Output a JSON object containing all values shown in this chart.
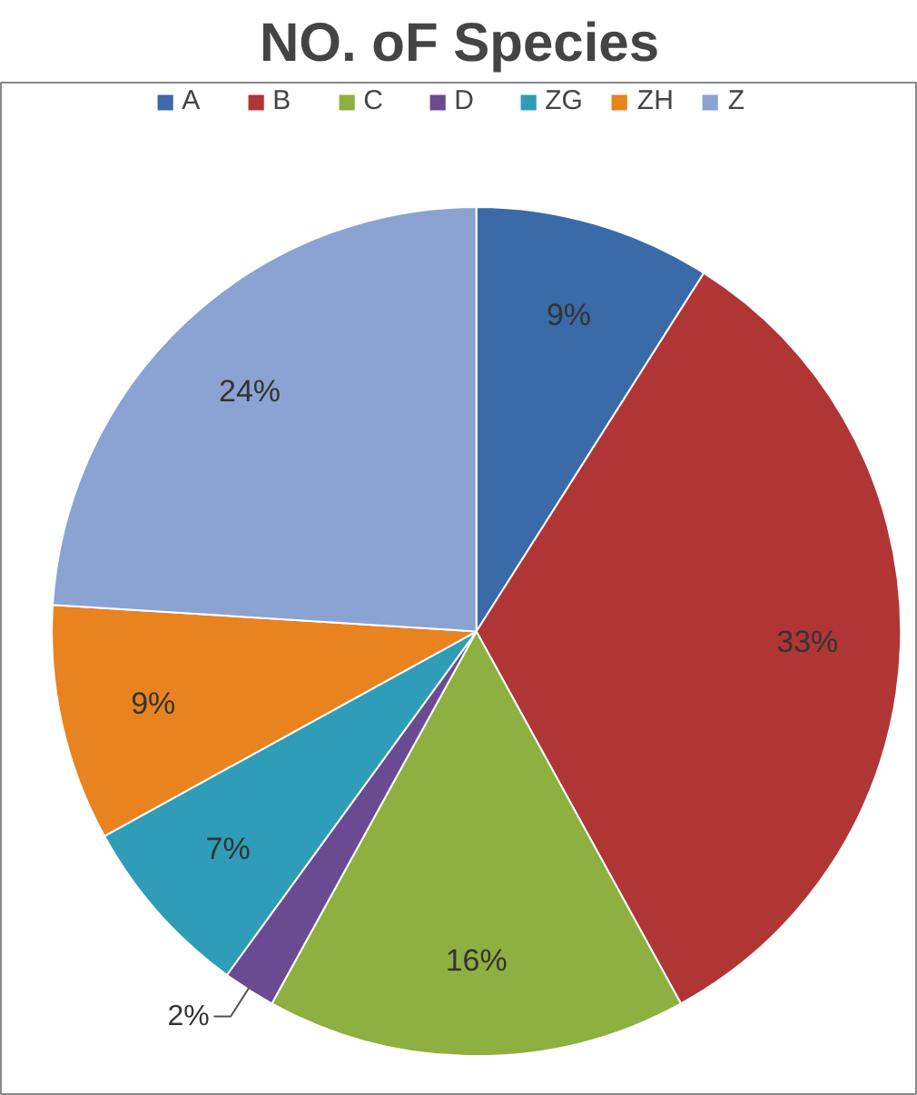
{
  "chart_data": {
    "type": "pie",
    "title": "NO. oF Species",
    "categories": [
      "A",
      "B",
      "C",
      "D",
      "ZG",
      "ZH",
      "Z"
    ],
    "values": [
      9,
      33,
      16,
      2,
      7,
      9,
      24
    ],
    "colors": [
      "#3a6aa8",
      "#b03636",
      "#8db040",
      "#6a4b92",
      "#2f9db8",
      "#e8831f",
      "#8aa3d2"
    ],
    "value_labels": [
      "9%",
      "33%",
      "16%",
      "2%",
      "7%",
      "9%",
      "24%"
    ],
    "legend": "top"
  }
}
